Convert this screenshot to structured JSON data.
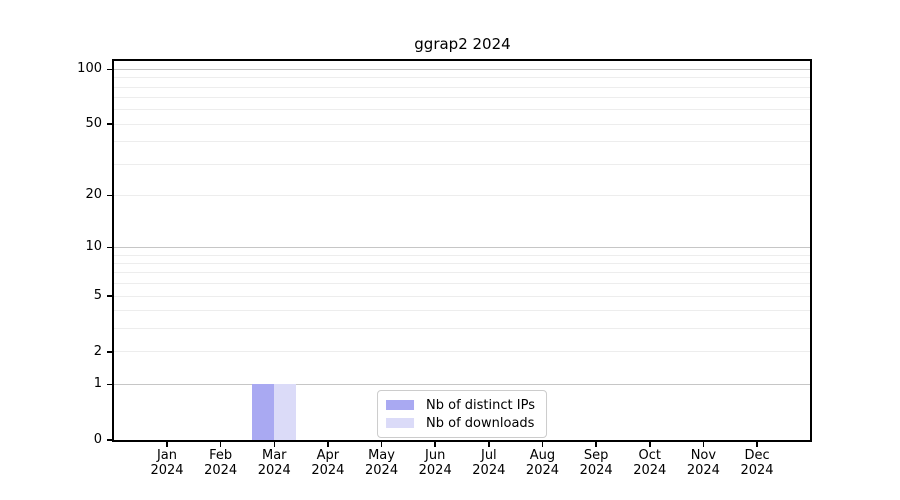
{
  "chart_data": {
    "type": "bar",
    "title": "ggrap2 2024",
    "categories": [
      {
        "month": "Jan",
        "year": "2024"
      },
      {
        "month": "Feb",
        "year": "2024"
      },
      {
        "month": "Mar",
        "year": "2024"
      },
      {
        "month": "Apr",
        "year": "2024"
      },
      {
        "month": "May",
        "year": "2024"
      },
      {
        "month": "Jun",
        "year": "2024"
      },
      {
        "month": "Jul",
        "year": "2024"
      },
      {
        "month": "Aug",
        "year": "2024"
      },
      {
        "month": "Sep",
        "year": "2024"
      },
      {
        "month": "Oct",
        "year": "2024"
      },
      {
        "month": "Nov",
        "year": "2024"
      },
      {
        "month": "Dec",
        "year": "2024"
      }
    ],
    "series": [
      {
        "name": "Nb of distinct IPs",
        "color": "#a9a9f2",
        "values": [
          0,
          0,
          1,
          0,
          0,
          0,
          0,
          0,
          0,
          0,
          0,
          0
        ]
      },
      {
        "name": "Nb of downloads",
        "color": "#dbdbf8",
        "values": [
          0,
          0,
          1,
          0,
          0,
          0,
          0,
          0,
          0,
          0,
          0,
          0
        ]
      }
    ],
    "yscale": "log1p",
    "ylim": [
      0,
      110
    ],
    "yticks": [
      0,
      1,
      2,
      5,
      10,
      20,
      50,
      100
    ],
    "grid": {
      "major_values": [
        1,
        10,
        100
      ],
      "minor_values": [
        2,
        3,
        4,
        5,
        6,
        7,
        8,
        9,
        20,
        30,
        40,
        50,
        60,
        70,
        80,
        90
      ],
      "major_color": "#c6c6c6",
      "minor_color": "#ededed"
    },
    "legend": {
      "position": "lower center"
    },
    "axis_color": "#000000",
    "xlabel": "",
    "ylabel": ""
  }
}
